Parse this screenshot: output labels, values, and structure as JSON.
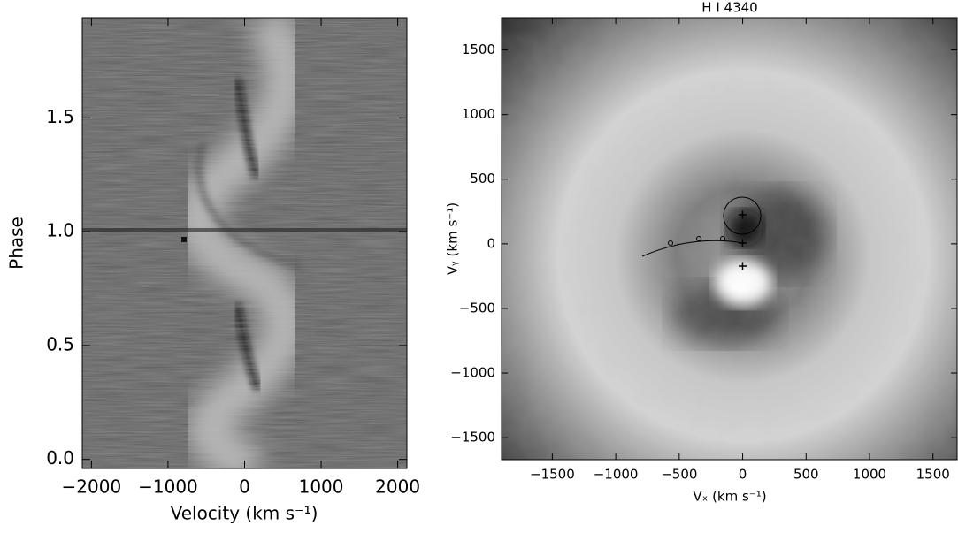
{
  "chart_data": [
    {
      "type": "heatmap",
      "x_label": "Velocity (km s⁻¹)",
      "y_label": "Phase",
      "xlim": [
        -2120,
        2120
      ],
      "ylim": [
        -0.04,
        1.94
      ],
      "xticks": [
        {
          "value": -2000,
          "label": "−2000"
        },
        {
          "value": -1000,
          "label": "−1000"
        },
        0,
        1000,
        2000
      ],
      "yticks": [
        {
          "value": 0,
          "label": "0.0"
        },
        0.5,
        {
          "value": 1,
          "label": "1.0"
        },
        1.5
      ]
    },
    {
      "type": "heatmap",
      "title": "H I 4340",
      "x_label": "Vₓ (km s⁻¹)",
      "y_label": "Vᵧ (km s⁻¹)",
      "xlim": [
        -1900,
        1690
      ],
      "ylim": [
        -1670,
        1750
      ],
      "xticks": [
        {
          "value": -1500,
          "label": "−1500"
        },
        {
          "value": -1000,
          "label": "−1000"
        },
        {
          "value": -500,
          "label": "−500"
        },
        0,
        500,
        1000,
        1500
      ],
      "yticks": [
        {
          "value": -1500,
          "label": "−1500"
        },
        {
          "value": -1000,
          "label": "−1000"
        },
        {
          "value": -500,
          "label": "−500"
        },
        0,
        500,
        1000,
        1500
      ]
    }
  ]
}
